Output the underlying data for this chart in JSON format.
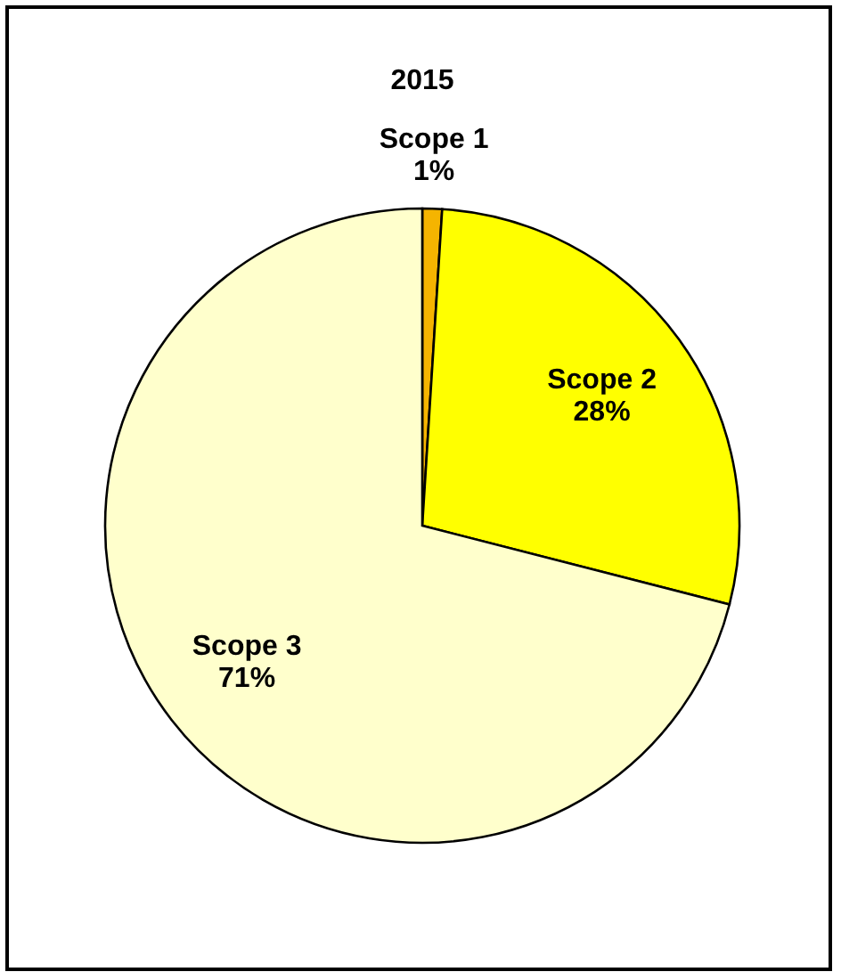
{
  "chart_data": {
    "type": "pie",
    "title": "2015",
    "categories": [
      "Scope 1",
      "Scope 2",
      "Scope 3"
    ],
    "values": [
      1,
      28,
      71
    ],
    "colors": [
      "#f5b400",
      "#ffff00",
      "#ffffcc"
    ],
    "value_labels": [
      "1%",
      "28%",
      "71%"
    ]
  }
}
